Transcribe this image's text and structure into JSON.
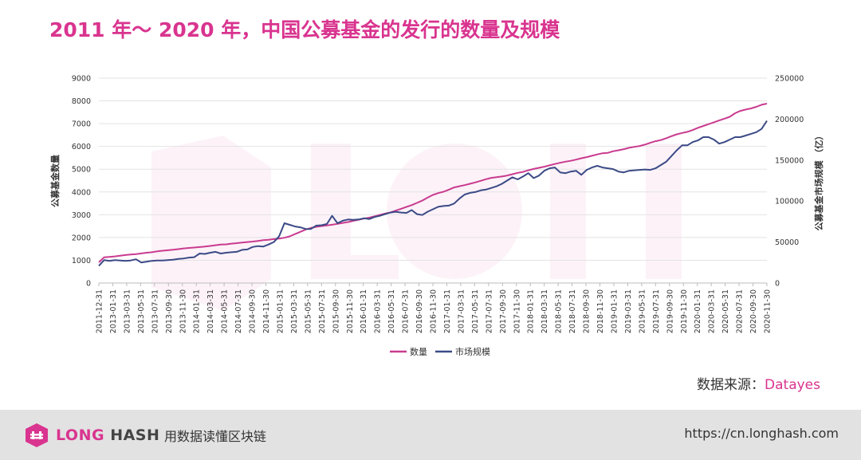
{
  "title": "2011 年～ 2020 年，中国公募基金的发行的数量及规模",
  "source": {
    "label": "数据来源：",
    "name": "Datayes"
  },
  "footer": {
    "brand_long": "LONG",
    "brand_hash": "HASH",
    "slogan": "用数据读懂区块链",
    "url": "https://cn.longhash.com"
  },
  "colors": {
    "count": "#c93b8f",
    "aum": "#3b4a86",
    "accent": "#d9348f"
  },
  "chart_data": {
    "type": "line",
    "title": "",
    "ylabel": "公募基金数量",
    "y2label": "公募基金市场规模 （亿）",
    "ylim": [
      0,
      9000
    ],
    "y2lim": [
      0,
      250000
    ],
    "yticks": [
      0,
      1000,
      2000,
      3000,
      4000,
      5000,
      6000,
      7000,
      8000,
      9000
    ],
    "y2ticks": [
      0,
      50000,
      100000,
      150000,
      200000,
      250000
    ],
    "grid": true,
    "legend_position": "bottom",
    "x_tick_labels": [
      "2011-12-31",
      "2013-01-31",
      "2013-03-31",
      "2013-05-31",
      "2013-07-31",
      "2013-09-30",
      "2013-11-30",
      "2014-01-31",
      "2014-03-31",
      "2014-05-31",
      "2014-07-31",
      "2014-09-30",
      "2014-11-30",
      "2015-01-31",
      "2015-03-31",
      "2015-05-31",
      "2015-07-31",
      "2015-09-30",
      "2015-11-30",
      "2016-01-31",
      "2016-03-31",
      "2016-05-31",
      "2016-07-31",
      "2016-09-30",
      "2016-11-30",
      "2017-01-31",
      "2017-03-31",
      "2017-05-31",
      "2017-07-31",
      "2017-09-30",
      "2017-11-30",
      "2018-01-31",
      "2018-03-31",
      "2018-05-31",
      "2018-07-31",
      "2018-09-30",
      "2018-11-30",
      "2019-01-31",
      "2019-03-31",
      "2019-05-31",
      "2019-07-31",
      "2019-09-30",
      "2019-11-30",
      "2020-01-31",
      "2020-03-31",
      "2020-05-31",
      "2020-07-31",
      "2020-09-30",
      "2020-11-30"
    ],
    "series": [
      {
        "name": "数量",
        "axis": "left",
        "values": [
          910,
          1130,
          1150,
          1170,
          1200,
          1230,
          1250,
          1270,
          1300,
          1330,
          1350,
          1390,
          1420,
          1440,
          1460,
          1490,
          1520,
          1540,
          1560,
          1580,
          1600,
          1630,
          1660,
          1690,
          1700,
          1730,
          1750,
          1780,
          1800,
          1820,
          1850,
          1880,
          1900,
          1930,
          1950,
          1990,
          2050,
          2150,
          2250,
          2350,
          2420,
          2470,
          2500,
          2530,
          2560,
          2600,
          2640,
          2680,
          2730,
          2780,
          2830,
          2870,
          2930,
          2990,
          3050,
          3100,
          3180,
          3260,
          3340,
          3420,
          3520,
          3620,
          3750,
          3870,
          3950,
          4010,
          4100,
          4200,
          4250,
          4300,
          4360,
          4420,
          4490,
          4560,
          4620,
          4650,
          4680,
          4720,
          4780,
          4840,
          4880,
          4950,
          5010,
          5060,
          5110,
          5170,
          5230,
          5280,
          5330,
          5370,
          5420,
          5480,
          5530,
          5590,
          5650,
          5700,
          5720,
          5790,
          5830,
          5880,
          5940,
          5980,
          6020,
          6080,
          6160,
          6230,
          6280,
          6360,
          6450,
          6530,
          6590,
          6640,
          6720,
          6820,
          6900,
          6980,
          7060,
          7140,
          7220,
          7300,
          7460,
          7560,
          7620,
          7670,
          7740,
          7830,
          7880
        ]
      },
      {
        "name": "市场规模",
        "axis": "right",
        "values": [
          21000,
          28000,
          27000,
          28000,
          27500,
          27000,
          27500,
          29000,
          25000,
          26000,
          27000,
          27500,
          27500,
          28000,
          28500,
          29500,
          30000,
          31000,
          31500,
          36000,
          35500,
          37000,
          38000,
          36000,
          37000,
          37500,
          38000,
          40500,
          41000,
          44000,
          45000,
          44500,
          47000,
          50000,
          57000,
          73000,
          71000,
          69000,
          68000,
          66000,
          66000,
          70000,
          70500,
          72000,
          82000,
          73000,
          76000,
          77500,
          77000,
          77500,
          79000,
          78000,
          80500,
          82000,
          84000,
          86000,
          87000,
          86000,
          85500,
          89000,
          84000,
          83000,
          87000,
          90000,
          93000,
          94000,
          94500,
          97000,
          103000,
          108000,
          110000,
          111000,
          113000,
          114000,
          116000,
          118000,
          121000,
          125000,
          129000,
          126500,
          130000,
          134000,
          128000,
          131000,
          137000,
          140000,
          141000,
          135000,
          134000,
          136000,
          137000,
          132000,
          138000,
          141000,
          143000,
          141000,
          140000,
          139000,
          136000,
          135000,
          137000,
          137500,
          138000,
          138500,
          138000,
          140000,
          144000,
          148000,
          155000,
          162000,
          168000,
          168000,
          172000,
          174000,
          178000,
          178000,
          175000,
          170000,
          172000,
          175000,
          178000,
          178000,
          180000,
          182000,
          184000,
          188000,
          198000
        ]
      }
    ]
  }
}
